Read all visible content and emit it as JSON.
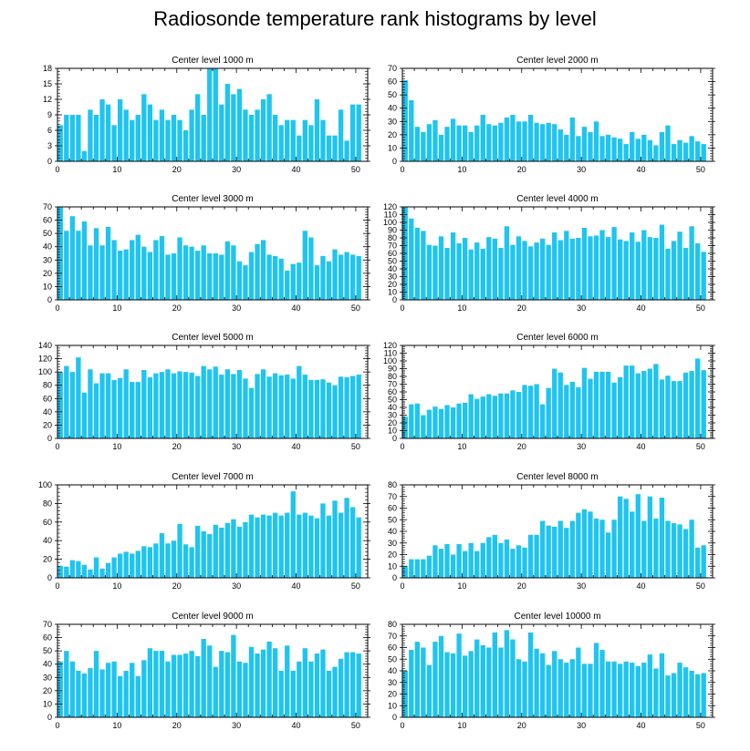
{
  "figure": {
    "title": "Radiosonde temperature rank histograms by level"
  },
  "colors": {
    "bar": "#1FC4F0",
    "bar_edge": "#ffffff",
    "axis": "#000000"
  },
  "chart_data": [
    {
      "type": "bar",
      "title": "Center level 1000 m",
      "xlim": [
        0,
        52
      ],
      "ylim": [
        0,
        18
      ],
      "xticks": [
        0,
        10,
        20,
        30,
        40,
        50
      ],
      "yticks": [
        0,
        3,
        6,
        9,
        12,
        15,
        18
      ],
      "values": [
        7,
        9,
        9,
        9,
        2,
        10,
        9,
        12,
        11,
        7,
        12,
        10,
        8,
        9,
        13,
        11,
        8,
        10,
        8,
        9,
        8,
        6,
        10,
        13,
        9,
        18,
        18,
        11,
        15,
        13,
        14,
        10,
        9,
        10,
        12,
        13,
        9,
        7,
        8,
        8,
        5,
        8,
        7,
        12,
        8,
        5,
        5,
        10,
        4,
        11,
        11
      ]
    },
    {
      "type": "bar",
      "title": "Center level 2000 m",
      "xlim": [
        0,
        52
      ],
      "ylim": [
        0,
        70
      ],
      "xticks": [
        0,
        10,
        20,
        30,
        40,
        50
      ],
      "yticks": [
        0,
        10,
        20,
        30,
        40,
        50,
        60,
        70
      ],
      "values": [
        61,
        46,
        26,
        22,
        28,
        31,
        20,
        26,
        32,
        27,
        27,
        22,
        27,
        35,
        28,
        27,
        29,
        33,
        35,
        30,
        30,
        35,
        29,
        28,
        29,
        28,
        24,
        20,
        33,
        19,
        26,
        22,
        30,
        19,
        20,
        18,
        17,
        13,
        22,
        17,
        20,
        16,
        12,
        22,
        27,
        13,
        16,
        14,
        19,
        15,
        13
      ]
    },
    {
      "type": "bar",
      "title": "Center level 3000 m",
      "xlim": [
        0,
        52
      ],
      "ylim": [
        0,
        70
      ],
      "xticks": [
        0,
        10,
        20,
        30,
        40,
        50
      ],
      "yticks": [
        0,
        10,
        20,
        30,
        40,
        50,
        60,
        70
      ],
      "values": [
        70,
        52,
        63,
        52,
        59,
        41,
        54,
        41,
        55,
        45,
        37,
        38,
        45,
        49,
        40,
        36,
        45,
        48,
        34,
        35,
        47,
        41,
        40,
        37,
        41,
        35,
        35,
        34,
        44,
        41,
        29,
        26,
        36,
        42,
        45,
        34,
        33,
        31,
        22,
        27,
        28,
        52,
        47,
        26,
        33,
        29,
        38,
        34,
        36,
        34,
        33
      ]
    },
    {
      "type": "bar",
      "title": "Center level 4000 m",
      "xlim": [
        0,
        52
      ],
      "ylim": [
        0,
        120
      ],
      "xticks": [
        0,
        10,
        20,
        30,
        40,
        50
      ],
      "yticks": [
        0,
        10,
        20,
        30,
        40,
        50,
        60,
        70,
        80,
        90,
        100,
        110,
        120
      ],
      "values": [
        120,
        105,
        93,
        89,
        71,
        70,
        82,
        67,
        87,
        73,
        80,
        65,
        74,
        66,
        81,
        79,
        67,
        95,
        71,
        82,
        76,
        69,
        74,
        79,
        71,
        87,
        77,
        89,
        79,
        80,
        93,
        82,
        83,
        90,
        81,
        94,
        78,
        76,
        87,
        75,
        90,
        81,
        80,
        97,
        66,
        76,
        88,
        67,
        95,
        73,
        62
      ]
    },
    {
      "type": "bar",
      "title": "Center level 5000 m",
      "xlim": [
        0,
        52
      ],
      "ylim": [
        0,
        140
      ],
      "xticks": [
        0,
        10,
        20,
        30,
        40,
        50
      ],
      "yticks": [
        0,
        20,
        40,
        60,
        80,
        100,
        120,
        140
      ],
      "values": [
        100,
        109,
        100,
        122,
        69,
        104,
        83,
        98,
        98,
        88,
        91,
        104,
        85,
        85,
        103,
        92,
        98,
        100,
        104,
        98,
        101,
        100,
        99,
        94,
        109,
        104,
        108,
        96,
        104,
        97,
        103,
        90,
        76,
        97,
        104,
        93,
        98,
        95,
        96,
        90,
        109,
        96,
        88,
        88,
        89,
        84,
        80,
        93,
        92,
        94,
        96
      ]
    },
    {
      "type": "bar",
      "title": "Center level 6000 m",
      "xlim": [
        0,
        52
      ],
      "ylim": [
        0,
        120
      ],
      "xticks": [
        0,
        10,
        20,
        30,
        40,
        50
      ],
      "yticks": [
        0,
        10,
        20,
        30,
        40,
        50,
        60,
        70,
        80,
        90,
        100,
        110,
        120
      ],
      "values": [
        28,
        44,
        45,
        30,
        37,
        41,
        38,
        43,
        40,
        45,
        46,
        57,
        51,
        54,
        57,
        55,
        58,
        58,
        62,
        60,
        69,
        68,
        70,
        44,
        65,
        90,
        85,
        69,
        73,
        66,
        91,
        77,
        86,
        86,
        86,
        72,
        79,
        94,
        94,
        84,
        87,
        90,
        96,
        76,
        81,
        74,
        74,
        85,
        87,
        103,
        88
      ]
    },
    {
      "type": "bar",
      "title": "Center level 7000 m",
      "xlim": [
        0,
        52
      ],
      "ylim": [
        0,
        100
      ],
      "xticks": [
        0,
        10,
        20,
        30,
        40,
        50
      ],
      "yticks": [
        0,
        20,
        40,
        60,
        80,
        100
      ],
      "values": [
        13,
        12,
        19,
        18,
        14,
        9,
        22,
        10,
        16,
        22,
        26,
        28,
        26,
        29,
        34,
        33,
        37,
        48,
        37,
        40,
        58,
        36,
        33,
        56,
        50,
        47,
        57,
        54,
        59,
        63,
        55,
        60,
        68,
        65,
        68,
        67,
        70,
        67,
        70,
        93,
        68,
        70,
        67,
        64,
        80,
        67,
        83,
        70,
        86,
        76,
        65
      ]
    },
    {
      "type": "bar",
      "title": "Center level 8000 m",
      "xlim": [
        0,
        52
      ],
      "ylim": [
        0,
        80
      ],
      "xticks": [
        0,
        10,
        20,
        30,
        40,
        50
      ],
      "yticks": [
        0,
        10,
        20,
        30,
        40,
        50,
        60,
        70,
        80
      ],
      "values": [
        10,
        16,
        16,
        16,
        19,
        28,
        25,
        29,
        20,
        29,
        23,
        30,
        23,
        30,
        35,
        37,
        30,
        33,
        25,
        28,
        26,
        37,
        37,
        49,
        45,
        44,
        49,
        43,
        49,
        56,
        59,
        57,
        51,
        50,
        39,
        50,
        70,
        68,
        57,
        72,
        49,
        70,
        51,
        69,
        49,
        47,
        46,
        42,
        50,
        26,
        28
      ]
    },
    {
      "type": "bar",
      "title": "Center level 9000 m",
      "xlim": [
        0,
        52
      ],
      "ylim": [
        0,
        70
      ],
      "xticks": [
        0,
        10,
        20,
        30,
        40,
        50
      ],
      "yticks": [
        0,
        10,
        20,
        30,
        40,
        50,
        60,
        70
      ],
      "values": [
        42,
        50,
        42,
        35,
        33,
        37,
        50,
        36,
        41,
        42,
        31,
        35,
        41,
        31,
        43,
        52,
        50,
        50,
        42,
        47,
        47,
        48,
        50,
        46,
        59,
        54,
        38,
        50,
        49,
        62,
        42,
        41,
        53,
        48,
        51,
        57,
        52,
        35,
        54,
        35,
        42,
        52,
        42,
        48,
        51,
        35,
        38,
        44,
        49,
        49,
        48
      ]
    },
    {
      "type": "bar",
      "title": "Center level 10000 m",
      "xlim": [
        0,
        52
      ],
      "ylim": [
        0,
        80
      ],
      "xticks": [
        0,
        10,
        20,
        30,
        40,
        50
      ],
      "yticks": [
        0,
        10,
        20,
        30,
        40,
        50,
        60,
        70,
        80
      ],
      "values": [
        40,
        58,
        65,
        60,
        45,
        65,
        70,
        56,
        55,
        72,
        53,
        57,
        67,
        62,
        60,
        73,
        60,
        75,
        67,
        50,
        48,
        73,
        59,
        55,
        45,
        57,
        50,
        47,
        50,
        60,
        46,
        46,
        64,
        58,
        48,
        48,
        46,
        48,
        47,
        44,
        47,
        54,
        42,
        55,
        36,
        38,
        47,
        43,
        40,
        37,
        38
      ]
    }
  ]
}
